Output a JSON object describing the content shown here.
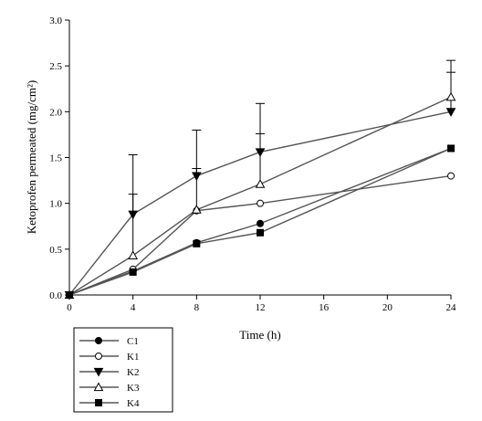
{
  "chart_data": {
    "type": "line",
    "xlabel": "Time (h)",
    "ylabel": "Ketoprofen permeated (mg/cm²)",
    "xlim": [
      0,
      24
    ],
    "ylim": [
      0,
      3.0
    ],
    "xticks": [
      0,
      4,
      8,
      12,
      16,
      20,
      24
    ],
    "yticks": [
      0.0,
      0.5,
      1.0,
      1.5,
      2.0,
      2.5,
      3.0
    ],
    "x": [
      0,
      4,
      8,
      12,
      24
    ],
    "grid": false,
    "legend_position": "bottom-left",
    "series": [
      {
        "name": "C1",
        "marker": "filled-circle",
        "values": [
          0,
          0.26,
          0.57,
          0.78,
          1.6
        ],
        "errors": [
          0,
          0,
          0,
          0,
          0
        ]
      },
      {
        "name": "K1",
        "marker": "open-circle",
        "values": [
          0,
          0.28,
          0.92,
          1.0,
          1.3
        ],
        "errors": [
          0,
          0,
          0,
          0,
          0
        ]
      },
      {
        "name": "K2",
        "marker": "filled-triangle-down",
        "values": [
          0,
          0.88,
          1.3,
          1.56,
          2.0
        ],
        "errors": [
          0,
          0.65,
          0.5,
          0.53,
          0.43
        ]
      },
      {
        "name": "K3",
        "marker": "open-triangle-up",
        "values": [
          0,
          0.43,
          0.93,
          1.21,
          2.16
        ],
        "errors": [
          0,
          0.67,
          0.45,
          0.55,
          0.4
        ]
      },
      {
        "name": "K4",
        "marker": "filled-square",
        "values": [
          0,
          0.25,
          0.56,
          0.68,
          1.6
        ],
        "errors": [
          0,
          0,
          0,
          0,
          0
        ]
      }
    ]
  }
}
